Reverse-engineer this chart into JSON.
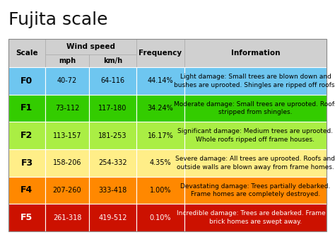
{
  "title": "Fujita scale",
  "background_color": "#ffffff",
  "header_bg": "#d0d0d0",
  "rows": [
    {
      "scale": "F0",
      "mph": "40-72",
      "kmh": "64-116",
      "freq": "44.14%",
      "info_bold": "Light",
      "info_rest": " damage: Small trees are blown down and\nbushes are uprooted. Shingles are ripped off roofs.",
      "row_color": "#6ec6f0",
      "text_color": "#000000"
    },
    {
      "scale": "F1",
      "mph": "73-112",
      "kmh": "117-180",
      "freq": "34.24%",
      "info_bold": "Moderate",
      "info_rest": " damage: Small trees are uprooted. Roofs\nstripped from shingles.",
      "row_color": "#33cc00",
      "text_color": "#000000"
    },
    {
      "scale": "F2",
      "mph": "113-157",
      "kmh": "181-253",
      "freq": "16.17%",
      "info_bold": "Significant",
      "info_rest": " damage: Medium trees are uprooted.\nWhole roofs ripped off frame houses.",
      "row_color": "#aaee44",
      "text_color": "#000000"
    },
    {
      "scale": "F3",
      "mph": "158-206",
      "kmh": "254-332",
      "freq": "4.35%",
      "info_bold": "Severe",
      "info_rest": " damage: All trees are uprooted. Roofs and\noutside walls are blown away from frame homes.",
      "row_color": "#ffee88",
      "text_color": "#000000"
    },
    {
      "scale": "F4",
      "mph": "207-260",
      "kmh": "333-418",
      "freq": "1.00%",
      "info_bold": "Devastating",
      "info_rest": " damage: Trees partially debarked.\nFrame homes are completely destroyed.",
      "row_color": "#ff8800",
      "text_color": "#000000"
    },
    {
      "scale": "F5",
      "mph": "261-318",
      "kmh": "419-512",
      "freq": "0.10%",
      "info_bold": "Incredible",
      "info_rest": " damage: Trees are debarked. Frame or\nbrick homes are swept away.",
      "row_color": "#cc1100",
      "text_color": "#ffffff"
    }
  ],
  "title_fontsize": 18,
  "scale_fontsize": 9,
  "data_fontsize": 7,
  "header_fontsize": 7.5,
  "info_fontsize": 6.5
}
